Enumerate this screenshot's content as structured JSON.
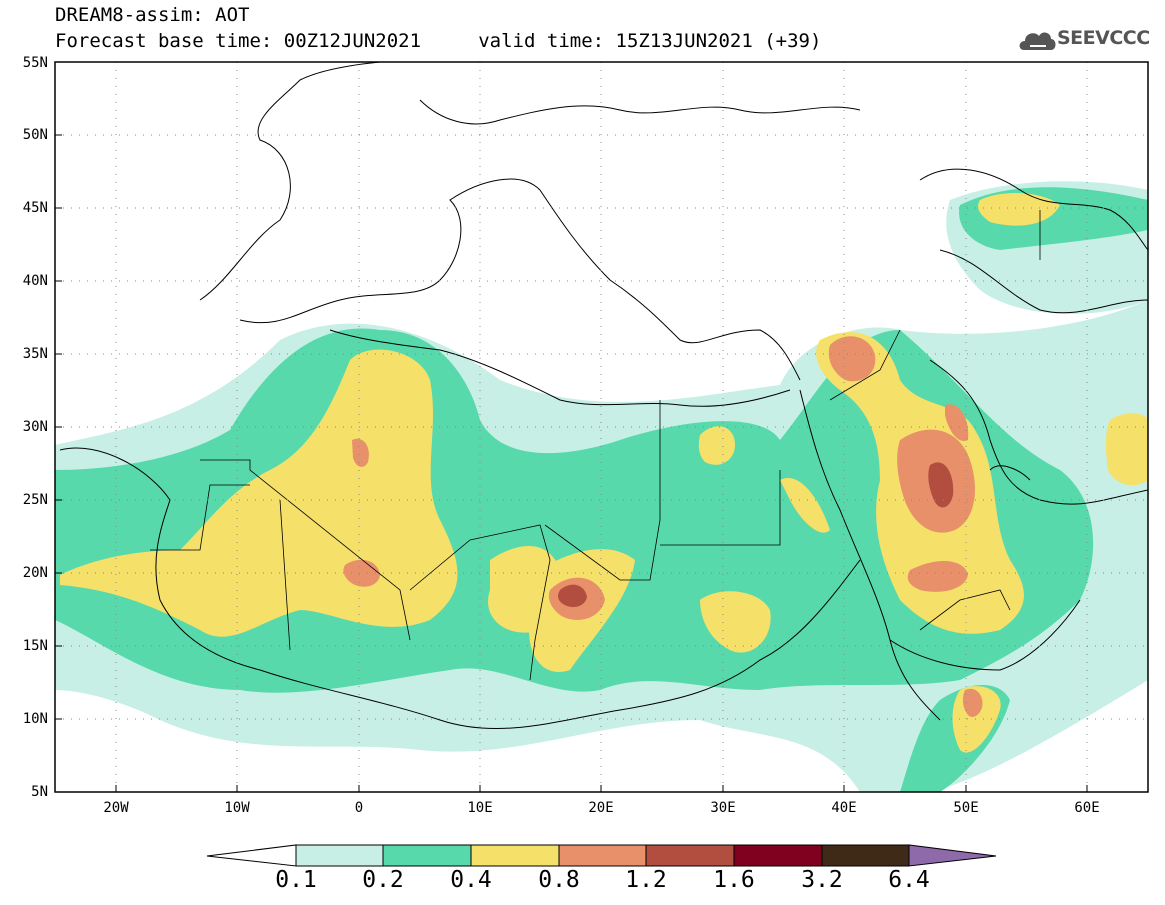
{
  "title": {
    "line1": "DREAM8-assim: AOT",
    "line2": "Forecast base time: 00Z12JUN2021     valid time: 15Z13JUN2021 (+39)"
  },
  "logo": {
    "text": "SEEVCCC",
    "icon": "cloud-icon"
  },
  "axes": {
    "lat_labels": [
      "55N",
      "50N",
      "45N",
      "40N",
      "35N",
      "30N",
      "25N",
      "20N",
      "15N",
      "10N",
      "5N"
    ],
    "lon_labels": [
      "20W",
      "10W",
      "0",
      "10E",
      "20E",
      "30E",
      "40E",
      "50E",
      "60E"
    ],
    "lat_range": [
      5,
      55
    ],
    "lon_range": [
      -25,
      65
    ],
    "grid": "dotted"
  },
  "colorbar": {
    "labels": [
      "0.1",
      "0.2",
      "0.4",
      "0.8",
      "1.2",
      "1.6",
      "3.2",
      "6.4"
    ],
    "colors": [
      "#ffffff",
      "#c7efe6",
      "#57d9ac",
      "#f5e06a",
      "#e8906a",
      "#b24e40",
      "#800020",
      "#3e2a16",
      "#8f6aaa"
    ]
  },
  "colors": {
    "c01": "#c7efe6",
    "c02": "#57d9ac",
    "c04": "#f5e06a",
    "c08": "#e8906a",
    "c12": "#b24e40"
  }
}
